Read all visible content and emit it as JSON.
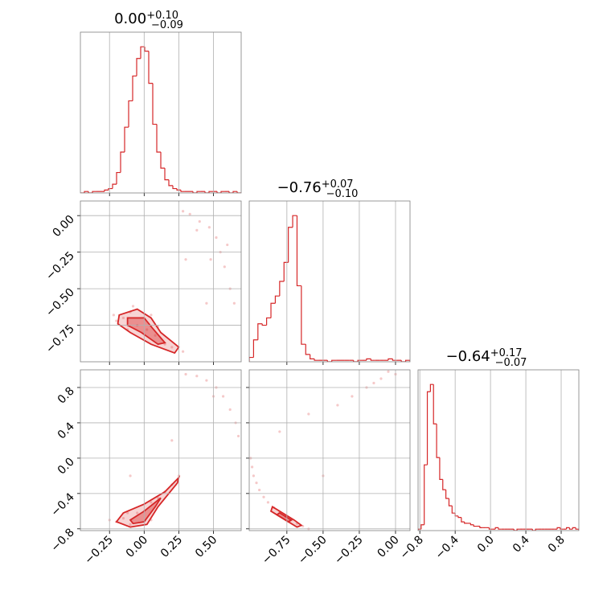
{
  "chart_data": [
    {
      "type": "histogram",
      "title": {
        "value": "0.00",
        "upper": "+0.10",
        "lower": "−0.09"
      },
      "color": "#d62728",
      "grid": true,
      "bins": [
        -0.46,
        -0.431,
        -0.402,
        -0.373,
        -0.344,
        -0.315,
        -0.286,
        -0.257,
        -0.228,
        -0.199,
        -0.17,
        -0.141,
        -0.112,
        -0.083,
        -0.054,
        -0.025,
        0.004,
        0.033,
        0.062,
        0.091,
        0.12,
        0.149,
        0.178,
        0.207,
        0.236,
        0.265,
        0.294,
        0.323,
        0.352,
        0.381,
        0.41,
        0.439,
        0.468,
        0.497,
        0.526,
        0.555,
        0.584,
        0.613,
        0.642,
        0.671,
        0.7
      ],
      "counts": [
        0,
        1,
        0,
        1,
        1,
        1,
        2,
        3,
        6,
        14,
        28,
        45,
        63,
        80,
        92,
        100,
        97,
        75,
        47,
        28,
        17,
        9,
        5,
        3,
        2,
        1,
        1,
        1,
        0,
        1,
        1,
        0,
        1,
        1,
        0,
        1,
        1,
        0,
        1,
        0
      ],
      "xlim": [
        -0.46,
        0.7
      ],
      "ylim": [
        0,
        110
      ],
      "xticks": [
        -0.25,
        0,
        0.25,
        0.5
      ]
    },
    {
      "type": "scatter",
      "color": "#d62728",
      "grid": true,
      "x": [
        -0.15,
        -0.2,
        -0.1,
        -0.05,
        0.02,
        0.08,
        0.15,
        0.2,
        0.28,
        -0.22,
        -0.12,
        0.1,
        0.05,
        -0.08,
        0.28,
        0.33,
        0.4,
        0.47,
        0.52,
        0.55,
        0.58,
        0.62,
        0.65,
        0.48,
        0.38,
        0.6,
        0.3,
        0.45
      ],
      "y": [
        -0.7,
        -0.72,
        -0.66,
        -0.75,
        -0.78,
        -0.82,
        -0.88,
        -0.9,
        -0.93,
        -0.68,
        -0.78,
        -0.76,
        -0.68,
        -0.62,
        0.03,
        0.01,
        -0.04,
        -0.08,
        -0.15,
        -0.25,
        -0.35,
        -0.5,
        -0.6,
        -0.3,
        -0.1,
        -0.2,
        -0.3,
        -0.6
      ],
      "contours": [
        {
          "x": [
            -0.18,
            -0.05,
            0.05,
            0.12,
            0.25,
            0.22,
            0.05,
            -0.1,
            -0.19
          ],
          "y": [
            -0.68,
            -0.64,
            -0.7,
            -0.8,
            -0.9,
            -0.94,
            -0.88,
            -0.8,
            -0.74
          ]
        },
        {
          "x": [
            -0.12,
            0.0,
            0.06,
            0.15,
            0.1,
            -0.02,
            -0.12
          ],
          "y": [
            -0.7,
            -0.7,
            -0.77,
            -0.87,
            -0.88,
            -0.8,
            -0.75
          ]
        }
      ],
      "xlim": [
        -0.46,
        0.7
      ],
      "ylim": [
        -1.0,
        0.1
      ],
      "xticks": [
        -0.25,
        0,
        0.25,
        0.5
      ],
      "yticks": [
        {
          "value": 0,
          "label": "0.00"
        },
        {
          "value": -0.25,
          "label": "−0.25"
        },
        {
          "value": -0.5,
          "label": "−0.50"
        },
        {
          "value": -0.75,
          "label": "−0.75"
        }
      ]
    },
    {
      "type": "histogram",
      "title": {
        "value": "−0.76",
        "upper": "+0.07",
        "lower": "−0.10"
      },
      "color": "#d62728",
      "grid": true,
      "bins": [
        -1.01,
        -0.98,
        -0.95,
        -0.92,
        -0.89,
        -0.86,
        -0.83,
        -0.8,
        -0.77,
        -0.74,
        -0.71,
        -0.68,
        -0.65,
        -0.62,
        -0.59,
        -0.56,
        -0.53,
        -0.5,
        -0.47,
        -0.44,
        -0.41,
        -0.38,
        -0.35,
        -0.32,
        -0.29,
        -0.26,
        -0.23,
        -0.2,
        -0.17,
        -0.14,
        -0.11,
        -0.08,
        -0.05,
        -0.02,
        0.01,
        0.04,
        0.07,
        0.1
      ],
      "counts": [
        3,
        15,
        26,
        25,
        30,
        40,
        45,
        55,
        68,
        92,
        100,
        52,
        12,
        5,
        2,
        1,
        1,
        1,
        0,
        1,
        1,
        1,
        1,
        1,
        0,
        1,
        1,
        2,
        1,
        1,
        1,
        1,
        2,
        1,
        1,
        0,
        1
      ],
      "xlim": [
        -1.01,
        0.1
      ],
      "ylim": [
        0,
        110
      ],
      "xticks": [
        -0.75,
        -0.5,
        -0.25,
        0
      ]
    },
    {
      "type": "scatter",
      "color": "#d62728",
      "grid": true,
      "x": [
        -0.2,
        -0.15,
        -0.1,
        -0.05,
        0.0,
        0.05,
        0.1,
        0.15,
        0.2,
        0.25,
        -0.25,
        0.05,
        -0.12,
        0.3,
        0.38,
        0.45,
        0.52,
        0.57,
        0.62,
        0.66,
        0.68,
        0.5,
        0.2,
        -0.1
      ],
      "y": [
        -0.72,
        -0.68,
        -0.75,
        -0.62,
        -0.6,
        -0.5,
        -0.45,
        -0.38,
        -0.3,
        -0.2,
        -0.7,
        -0.7,
        -0.62,
        0.95,
        0.93,
        0.88,
        0.8,
        0.7,
        0.55,
        0.4,
        0.25,
        0.7,
        0.2,
        -0.2
      ],
      "contours": [
        {
          "x": [
            -0.2,
            -0.15,
            0.0,
            0.15,
            0.25,
            0.24,
            0.1,
            0.02,
            -0.1
          ],
          "y": [
            -0.72,
            -0.62,
            -0.52,
            -0.38,
            -0.22,
            -0.28,
            -0.55,
            -0.75,
            -0.78
          ]
        },
        {
          "x": [
            -0.1,
            0.0,
            0.12,
            0.08,
            0.0,
            -0.08
          ],
          "y": [
            -0.7,
            -0.6,
            -0.45,
            -0.55,
            -0.72,
            -0.74
          ]
        }
      ],
      "xlim": [
        -0.46,
        0.7
      ],
      "ylim": [
        -0.82,
        1.0
      ],
      "xticks": [
        {
          "value": -0.25,
          "label": "−0.25"
        },
        {
          "value": 0,
          "label": "0.00"
        },
        0.25,
        {
          "value": 0.5,
          "label": "0.50"
        }
      ],
      "yticks": [
        0.8,
        0.4,
        {
          "value": 0,
          "label": "0.0"
        },
        {
          "value": -0.4,
          "label": "−0.4"
        },
        {
          "value": -0.8,
          "label": "−0.8"
        }
      ]
    },
    {
      "type": "scatter",
      "color": "#d62728",
      "grid": true,
      "x": [
        -1.0,
        -0.99,
        -0.98,
        -0.96,
        -0.94,
        -0.91,
        -0.88,
        -0.84,
        -0.8,
        -0.76,
        -0.72,
        -0.68,
        -0.64,
        -0.6,
        -0.3,
        -0.1,
        0.0,
        -0.2,
        -0.6,
        -0.8,
        -0.4,
        -0.5,
        -0.15,
        -0.05
      ],
      "y": [
        0.0,
        -0.1,
        -0.2,
        -0.28,
        -0.36,
        -0.44,
        -0.5,
        -0.56,
        -0.61,
        -0.66,
        -0.7,
        -0.74,
        -0.77,
        -0.8,
        0.7,
        0.9,
        0.95,
        0.8,
        0.5,
        0.3,
        0.6,
        -0.2,
        0.85,
        0.98
      ],
      "contours": [
        {
          "x": [
            -0.85,
            -0.78,
            -0.7,
            -0.65,
            -0.68,
            -0.76,
            -0.86
          ],
          "y": [
            -0.55,
            -0.62,
            -0.7,
            -0.76,
            -0.78,
            -0.7,
            -0.6
          ]
        },
        {
          "x": [
            -0.8,
            -0.72,
            -0.74,
            -0.82
          ],
          "y": [
            -0.62,
            -0.7,
            -0.72,
            -0.64
          ]
        }
      ],
      "xlim": [
        -1.01,
        0.1
      ],
      "ylim": [
        -0.82,
        1.0
      ],
      "xticks": [
        {
          "value": -0.75,
          "label": "−0.75"
        },
        {
          "value": -0.5,
          "label": "−0.50"
        },
        {
          "value": -0.25,
          "label": "−0.25"
        },
        {
          "value": 0,
          "label": "0.00"
        }
      ],
      "yticks": [
        0.8,
        0.4,
        0,
        -0.4,
        -0.8
      ]
    },
    {
      "type": "histogram",
      "title": {
        "value": "−0.64",
        "upper": "+0.17",
        "lower": "−0.07"
      },
      "color": "#d62728",
      "grid": true,
      "bins": [
        -0.82,
        -0.785,
        -0.75,
        -0.715,
        -0.68,
        -0.645,
        -0.61,
        -0.575,
        -0.54,
        -0.505,
        -0.47,
        -0.435,
        -0.4,
        -0.365,
        -0.33,
        -0.295,
        -0.26,
        -0.225,
        -0.19,
        -0.155,
        -0.12,
        -0.085,
        -0.05,
        -0.015,
        0.02,
        0.055,
        0.09,
        0.125,
        0.16,
        0.195,
        0.23,
        0.265,
        0.3,
        0.335,
        0.37,
        0.405,
        0.44,
        0.475,
        0.51,
        0.545,
        0.58,
        0.615,
        0.65,
        0.685,
        0.72,
        0.755,
        0.79,
        0.825,
        0.86,
        0.895,
        0.93,
        0.965,
        1.0
      ],
      "counts": [
        1,
        4,
        45,
        95,
        100,
        73,
        50,
        35,
        28,
        22,
        17,
        12,
        10,
        9,
        6,
        5,
        5,
        4,
        3,
        3,
        2,
        2,
        2,
        1,
        1,
        2,
        1,
        1,
        1,
        1,
        1,
        0,
        1,
        1,
        1,
        1,
        1,
        0,
        1,
        1,
        1,
        1,
        1,
        1,
        1,
        2,
        1,
        1,
        2,
        1,
        2,
        1
      ],
      "xlim": [
        -0.82,
        1.0
      ],
      "ylim": [
        0,
        110
      ],
      "xticks": [
        {
          "value": -0.8,
          "label": "−0.8"
        },
        {
          "value": -0.4,
          "label": "−0.4"
        },
        {
          "value": 0,
          "label": "0.0"
        },
        0.4,
        0.8
      ]
    }
  ]
}
